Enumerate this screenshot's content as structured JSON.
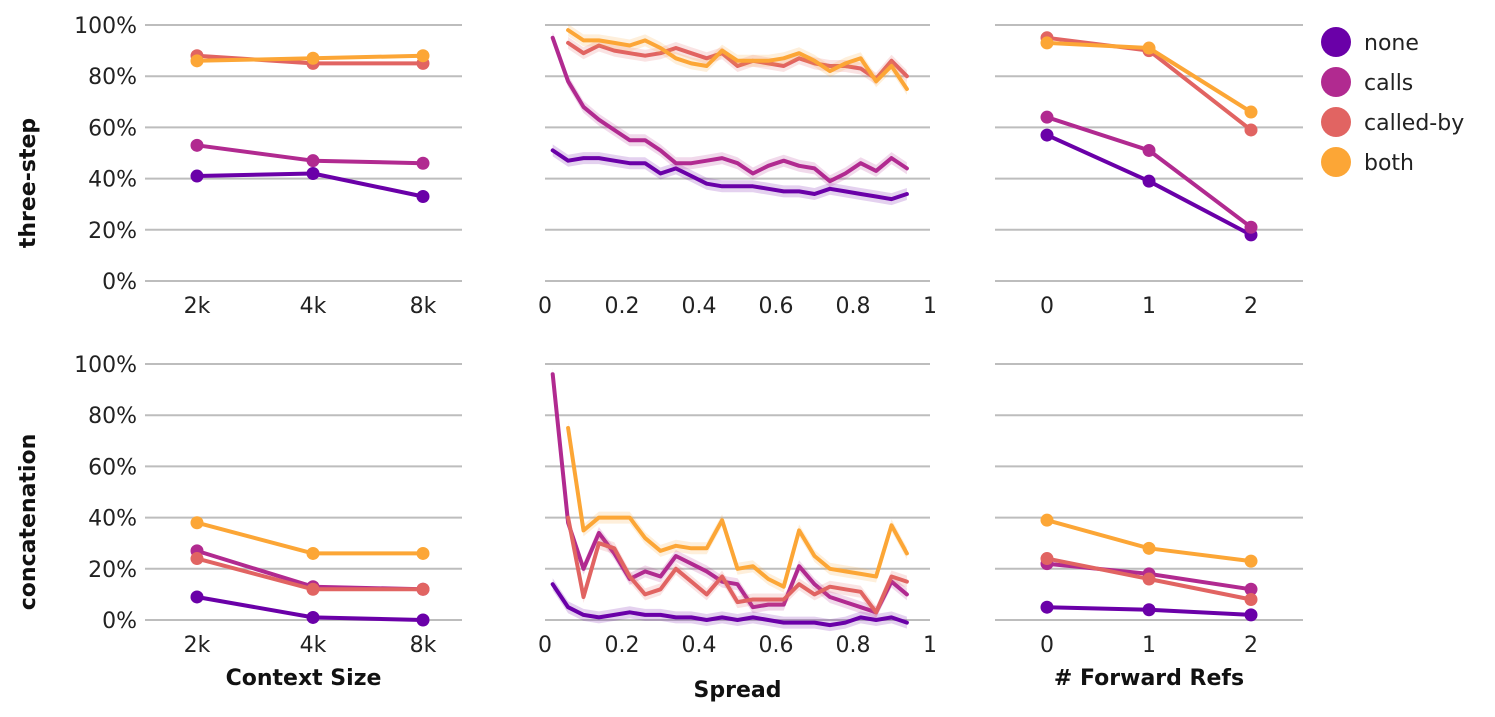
{
  "colors": {
    "none": "#6a00a8",
    "calls": "#b12a90",
    "called-by": "#e16462",
    "both": "#fca636"
  },
  "legend": [
    "none",
    "calls",
    "called-by",
    "both"
  ],
  "chart_data": {
    "type": "line",
    "rows": [
      {
        "label": "three-step"
      },
      {
        "label": "concatenation"
      }
    ],
    "columns": [
      {
        "xlabel": "Context Size",
        "xticks": [
          "2k",
          "4k",
          "8k"
        ]
      },
      {
        "xlabel": "Spread",
        "xticks": [
          "0",
          "0.2",
          "0.4",
          "0.6",
          "0.8",
          "1"
        ],
        "xlim": [
          0,
          1
        ]
      },
      {
        "xlabel": "# Forward Refs",
        "xticks": [
          "0",
          "1",
          "2"
        ]
      }
    ],
    "ylim": [
      0,
      100
    ],
    "yticks": [
      "0%",
      "20%",
      "40%",
      "60%",
      "80%",
      "100%"
    ],
    "panels": [
      {
        "row": 0,
        "col": 0,
        "categories": [
          "2k",
          "4k",
          "8k"
        ],
        "series": [
          {
            "name": "none",
            "values": [
              41,
              42,
              33
            ]
          },
          {
            "name": "calls",
            "values": [
              53,
              47,
              46
            ]
          },
          {
            "name": "called-by",
            "values": [
              88,
              85,
              85
            ]
          },
          {
            "name": "both",
            "values": [
              86,
              87,
              88
            ]
          }
        ]
      },
      {
        "row": 0,
        "col": 1,
        "x": [
          0.02,
          0.06,
          0.1,
          0.14,
          0.18,
          0.22,
          0.26,
          0.3,
          0.34,
          0.38,
          0.42,
          0.46,
          0.5,
          0.54,
          0.58,
          0.62,
          0.66,
          0.7,
          0.74,
          0.78,
          0.82,
          0.86,
          0.9,
          0.94
        ],
        "series": [
          {
            "name": "none",
            "values": [
              51,
              47,
              48,
              48,
              47,
              46,
              46,
              42,
              44,
              41,
              38,
              37,
              37,
              37,
              36,
              35,
              35,
              34,
              36,
              35,
              34,
              33,
              32,
              34
            ]
          },
          {
            "name": "calls",
            "values": [
              95,
              78,
              68,
              63,
              59,
              55,
              55,
              51,
              46,
              46,
              47,
              48,
              46,
              42,
              45,
              47,
              45,
              44,
              39,
              42,
              46,
              43,
              48,
              44
            ]
          },
          {
            "name": "called-by",
            "values": [
              null,
              93,
              89,
              92,
              90,
              89,
              88,
              89,
              91,
              89,
              87,
              89,
              84,
              86,
              85,
              84,
              87,
              85,
              84,
              84,
              83,
              79,
              86,
              80
            ]
          },
          {
            "name": "both",
            "values": [
              null,
              98,
              94,
              94,
              93,
              92,
              94,
              91,
              87,
              85,
              84,
              90,
              86,
              86,
              86,
              87,
              89,
              86,
              82,
              85,
              87,
              78,
              84,
              75
            ]
          }
        ]
      },
      {
        "row": 0,
        "col": 2,
        "categories": [
          "0",
          "1",
          "2"
        ],
        "series": [
          {
            "name": "none",
            "values": [
              57,
              39,
              18
            ]
          },
          {
            "name": "calls",
            "values": [
              64,
              51,
              21
            ]
          },
          {
            "name": "called-by",
            "values": [
              95,
              90,
              59
            ]
          },
          {
            "name": "both",
            "values": [
              93,
              91,
              66
            ]
          }
        ]
      },
      {
        "row": 1,
        "col": 0,
        "categories": [
          "2k",
          "4k",
          "8k"
        ],
        "series": [
          {
            "name": "none",
            "values": [
              9,
              1,
              0
            ]
          },
          {
            "name": "calls",
            "values": [
              27,
              13,
              12
            ]
          },
          {
            "name": "called-by",
            "values": [
              24,
              12,
              12
            ]
          },
          {
            "name": "both",
            "values": [
              38,
              26,
              26
            ]
          }
        ]
      },
      {
        "row": 1,
        "col": 1,
        "x": [
          0.02,
          0.06,
          0.1,
          0.14,
          0.18,
          0.22,
          0.26,
          0.3,
          0.34,
          0.38,
          0.42,
          0.46,
          0.5,
          0.54,
          0.58,
          0.62,
          0.66,
          0.7,
          0.74,
          0.78,
          0.82,
          0.86,
          0.9,
          0.94
        ],
        "series": [
          {
            "name": "none",
            "values": [
              14,
              5,
              2,
              1,
              2,
              3,
              2,
              2,
              1,
              1,
              0,
              1,
              0,
              1,
              0,
              -1,
              -1,
              -1,
              -2,
              -1,
              1,
              0,
              1,
              -1
            ]
          },
          {
            "name": "calls",
            "values": [
              96,
              38,
              20,
              34,
              26,
              16,
              19,
              17,
              25,
              22,
              19,
              15,
              14,
              5,
              6,
              6,
              21,
              14,
              9,
              7,
              5,
              3,
              15,
              10
            ]
          },
          {
            "name": "called-by",
            "values": [
              null,
              40,
              9,
              30,
              28,
              17,
              10,
              12,
              20,
              15,
              10,
              17,
              7,
              8,
              8,
              8,
              14,
              10,
              13,
              12,
              11,
              3,
              17,
              15
            ]
          },
          {
            "name": "both",
            "values": [
              null,
              75,
              35,
              40,
              40,
              40,
              32,
              27,
              29,
              28,
              28,
              39,
              20,
              21,
              16,
              13,
              35,
              25,
              20,
              19,
              18,
              17,
              37,
              26
            ]
          }
        ]
      },
      {
        "row": 1,
        "col": 2,
        "categories": [
          "0",
          "1",
          "2"
        ],
        "series": [
          {
            "name": "none",
            "values": [
              5,
              4,
              2
            ]
          },
          {
            "name": "calls",
            "values": [
              22,
              18,
              12
            ]
          },
          {
            "name": "called-by",
            "values": [
              24,
              16,
              8
            ]
          },
          {
            "name": "both",
            "values": [
              39,
              28,
              23
            ]
          }
        ]
      }
    ]
  }
}
